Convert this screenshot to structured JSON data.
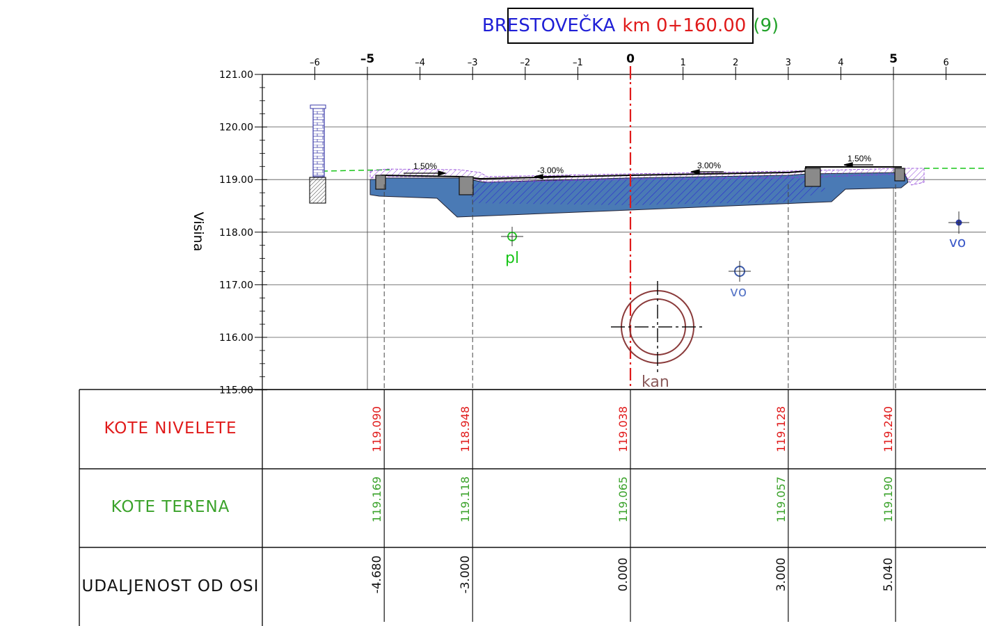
{
  "title": {
    "name": "BRESTOVEČKA",
    "km": "km 0+160.00",
    "number": "(9)"
  },
  "axis": {
    "ylabel": "Visina",
    "y_ticks": [
      "121.00",
      "120.00",
      "119.00",
      "118.00",
      "117.00",
      "116.00",
      "115.00"
    ],
    "x_ticks": [
      "-6",
      "-5",
      "-4",
      "-3",
      "-2",
      "-1",
      "0",
      "1",
      "2",
      "3",
      "4",
      "5",
      "6"
    ]
  },
  "slopes": [
    "1.50%",
    "-3.00%",
    "3.00%",
    "1.50%"
  ],
  "utilities": {
    "pl": "pl",
    "vo_left": "vo",
    "vo_right": "vo",
    "kan": "kan"
  },
  "table": {
    "rows": [
      {
        "label": "KOTE NIVELETE",
        "color": "#e01a1a",
        "values": [
          "119.090",
          "118.948",
          "119.038",
          "119.128",
          "119.240"
        ]
      },
      {
        "label": "KOTE TERENA",
        "color": "#3aa22a",
        "values": [
          "119.169",
          "119.118",
          "119.065",
          "119.057",
          "119.190"
        ]
      },
      {
        "label": "UDALJENOST OD OSI",
        "color": "#111111",
        "values": [
          "-4.680",
          "-3.000",
          "0.000",
          "3.000",
          "5.040"
        ]
      }
    ]
  },
  "colors": {
    "pavement": "#4a7ab5",
    "hatch": "#2a2ad0",
    "terrain": "#19c519",
    "axis": "#e01a1a"
  }
}
